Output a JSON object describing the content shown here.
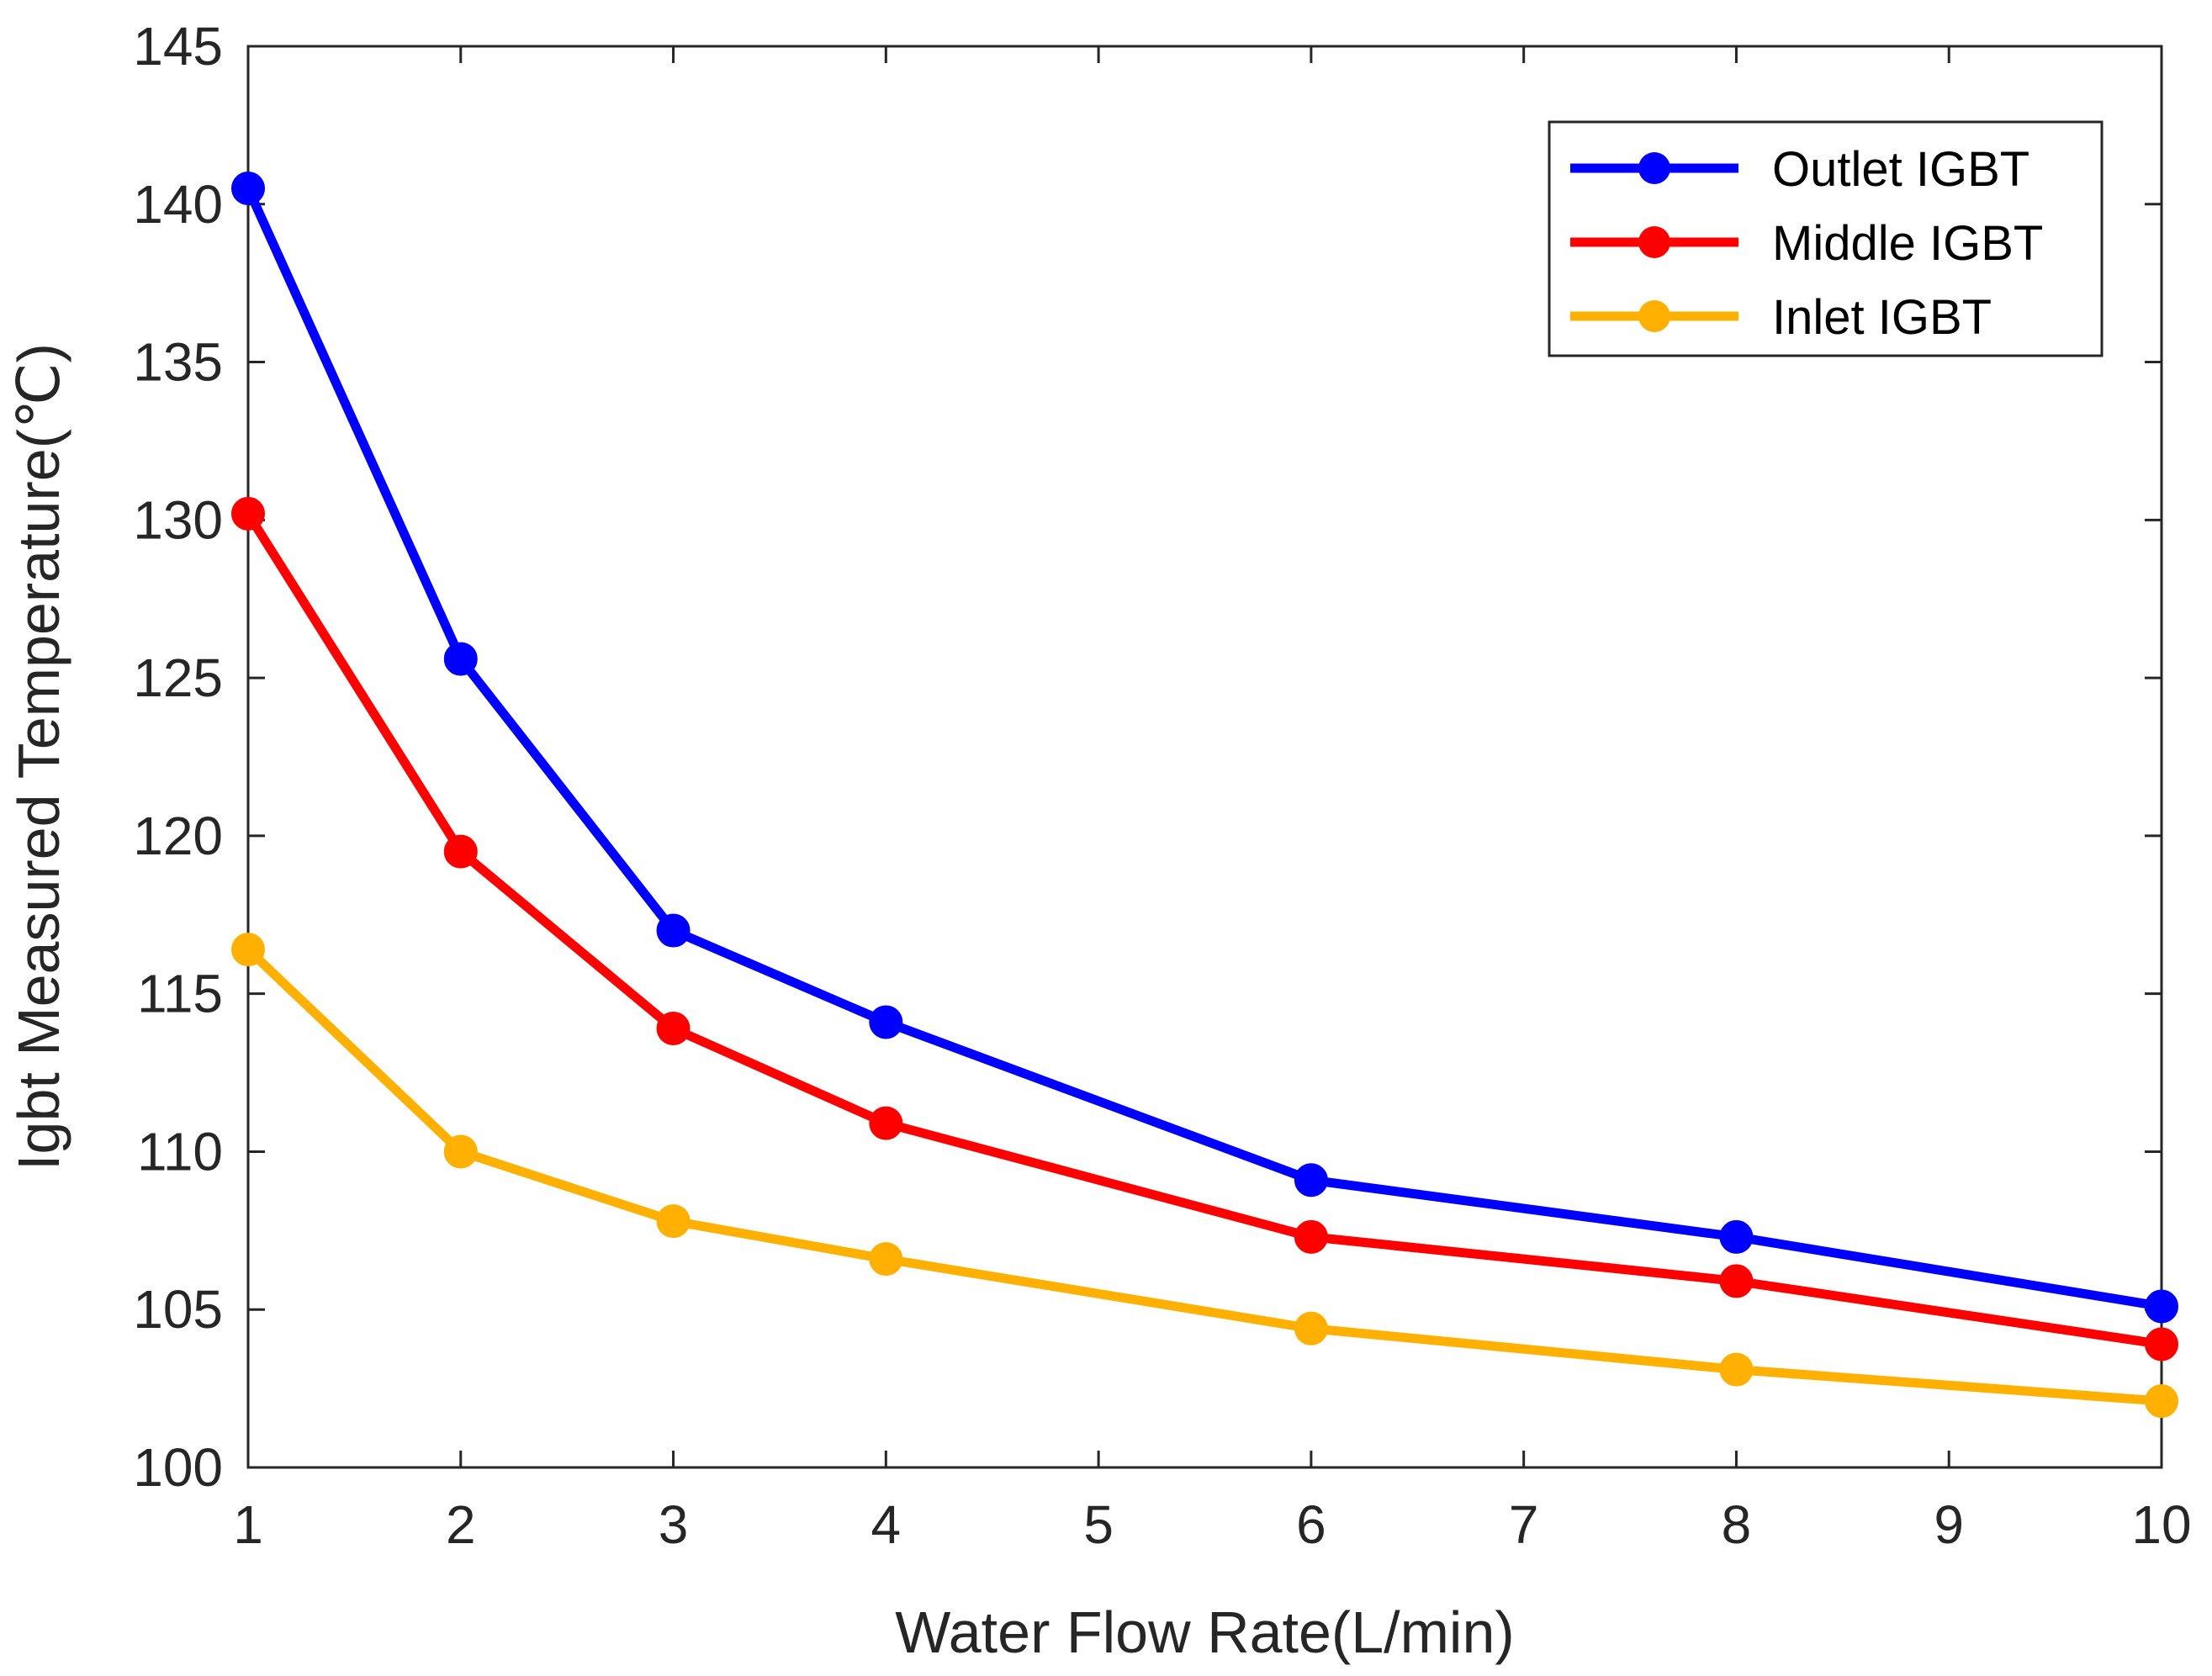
{
  "chart_data": {
    "type": "line",
    "title": "",
    "xlabel": "Water Flow Rate(L/min)",
    "ylabel": "Igbt Measured Temperature(℃)",
    "xlim": [
      1,
      10
    ],
    "ylim": [
      100,
      145
    ],
    "xticks": [
      1,
      2,
      3,
      4,
      5,
      6,
      7,
      8,
      9,
      10
    ],
    "yticks": [
      100,
      105,
      110,
      115,
      120,
      125,
      130,
      135,
      140,
      145
    ],
    "grid": false,
    "legend_position": "top-right",
    "x": [
      1,
      2,
      3,
      4,
      6,
      8,
      10
    ],
    "series": [
      {
        "name": "Outlet IGBT",
        "color": "#0000ff",
        "values": [
          140.5,
          125.6,
          117.0,
          114.1,
          109.1,
          107.3,
          105.1
        ]
      },
      {
        "name": "Middle IGBT",
        "color": "#ff0000",
        "values": [
          130.2,
          119.5,
          113.9,
          110.9,
          107.3,
          105.9,
          103.9
        ]
      },
      {
        "name": "Inlet IGBT",
        "color": "#ffb000",
        "values": [
          116.4,
          110.0,
          107.8,
          106.6,
          104.4,
          103.1,
          102.1
        ]
      }
    ]
  }
}
